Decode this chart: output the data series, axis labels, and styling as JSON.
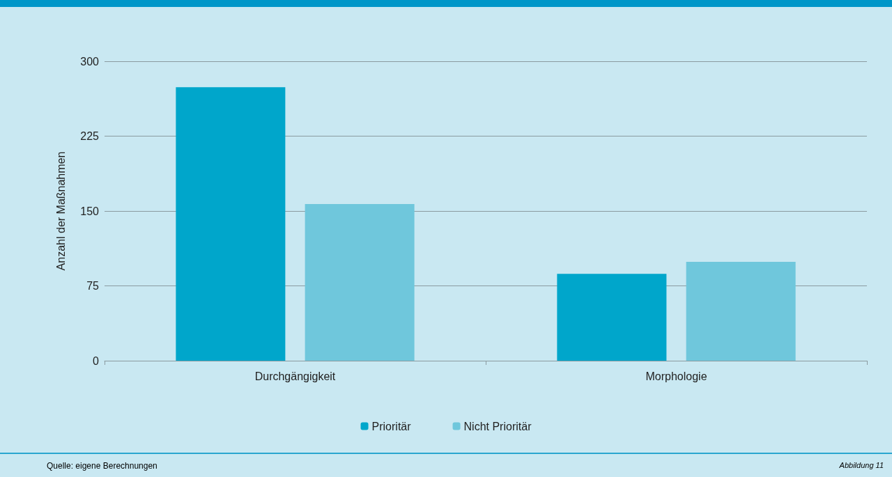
{
  "chart_data": {
    "type": "bar",
    "ylabel": "Anzahl der Maßnahmen",
    "categories": [
      "Durchgängigkeit",
      "Morphologie"
    ],
    "series": [
      {
        "name": "Prioritär",
        "color": "#00a6cb",
        "values": [
          274,
          87
        ]
      },
      {
        "name": "Nicht Prioritär",
        "color": "#6fc7dc",
        "values": [
          157,
          99
        ]
      }
    ],
    "ylim": [
      0,
      300
    ],
    "yticks": [
      0,
      75,
      150,
      225,
      300
    ],
    "grid": "y",
    "legend": "bottom",
    "annotations": [
      "Quelle: eigene Berechnungen",
      "Abbildung 11"
    ]
  }
}
